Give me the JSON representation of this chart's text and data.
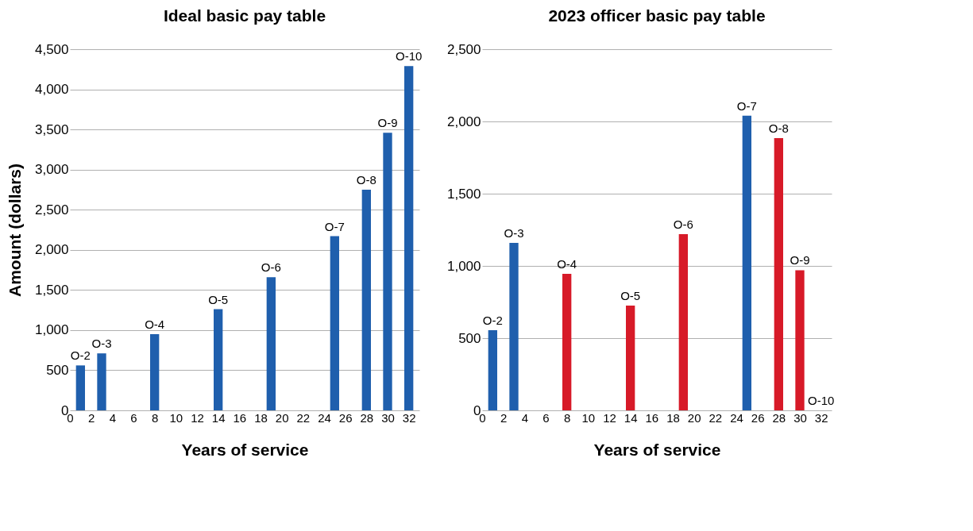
{
  "chart_data": [
    {
      "type": "bar",
      "title": "Ideal basic pay table",
      "xlabel": "Years of service",
      "ylabel": "Amount (dollars)",
      "x": [
        1,
        3,
        8,
        14,
        19,
        25,
        28,
        30,
        32
      ],
      "series": [
        {
          "values": [
            560,
            710,
            950,
            1260,
            1660,
            2170,
            2750,
            3460,
            4290
          ],
          "colors": [
            "#1f5fad",
            "#1f5fad",
            "#1f5fad",
            "#1f5fad",
            "#1f5fad",
            "#1f5fad",
            "#1f5fad",
            "#1f5fad",
            "#1f5fad"
          ],
          "value_labels": [
            "O-2",
            "O-3",
            "O-4",
            "O-5",
            "O-6",
            "O-7",
            "O-8",
            "O-9",
            "O-10"
          ]
        }
      ],
      "xlim": [
        0,
        33
      ],
      "xticks": [
        0,
        2,
        4,
        6,
        8,
        10,
        12,
        14,
        16,
        18,
        20,
        22,
        24,
        26,
        28,
        30,
        32
      ],
      "ylim": [
        0,
        4500
      ],
      "yticks": [
        0,
        500,
        {
          "value": 1000,
          "label": "1,000"
        },
        {
          "value": 1500,
          "label": "1,500"
        },
        {
          "value": 2000,
          "label": "2,000"
        },
        {
          "value": 2500,
          "label": "2,500"
        },
        {
          "value": 3000,
          "label": "3,000"
        },
        {
          "value": 3500,
          "label": "3,500"
        },
        {
          "value": 4000,
          "label": "4,000"
        },
        {
          "value": 4500,
          "label": "4,500"
        }
      ],
      "grid": "y"
    },
    {
      "type": "bar",
      "title": "2023 officer basic pay table",
      "xlabel": "Years of service",
      "x": [
        1,
        3,
        8,
        14,
        19,
        25,
        28,
        30,
        32
      ],
      "series": [
        {
          "values": [
            555,
            1160,
            945,
            725,
            1220,
            2040,
            1885,
            970,
            0
          ],
          "colors": [
            "#1f5fad",
            "#1f5fad",
            "#d71a28",
            "#d71a28",
            "#d71a28",
            "#1f5fad",
            "#d71a28",
            "#d71a28",
            "#d71a28"
          ],
          "value_labels": [
            "O-2",
            "O-3",
            "O-4",
            "O-5",
            "O-6",
            "O-7",
            "O-8",
            "O-9",
            "O-10"
          ]
        }
      ],
      "xlim": [
        0,
        33
      ],
      "xticks": [
        0,
        2,
        4,
        6,
        8,
        10,
        12,
        14,
        16,
        18,
        20,
        22,
        24,
        26,
        28,
        30,
        32
      ],
      "ylim": [
        0,
        2500
      ],
      "yticks": [
        0,
        500,
        {
          "value": 1000,
          "label": "1,000"
        },
        {
          "value": 1500,
          "label": "1,500"
        },
        {
          "value": 2000,
          "label": "2,000"
        },
        {
          "value": 2500,
          "label": "2,500"
        }
      ],
      "grid": "y"
    }
  ]
}
